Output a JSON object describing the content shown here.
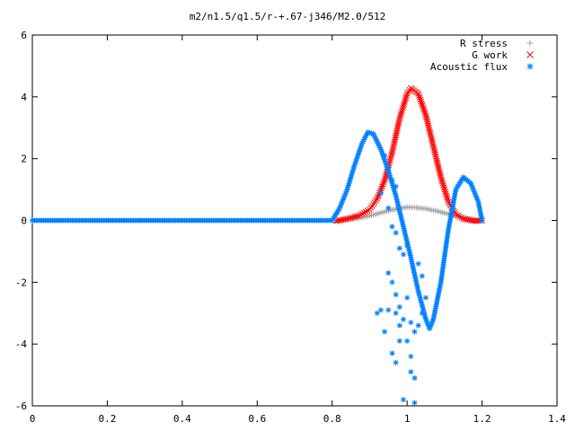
{
  "chart_data": {
    "type": "scatter",
    "title": "m2/n1.5/q1.5/r-+.67-j346/M2.0/512",
    "xlabel": "",
    "ylabel": "",
    "xlim": [
      0,
      1.4
    ],
    "ylim": [
      -6,
      6
    ],
    "x_ticks": [
      "0",
      "0.2",
      "0.4",
      "0.6",
      "0.8",
      "1",
      "1.2",
      "1.4"
    ],
    "y_ticks": [
      "6",
      "4",
      "2",
      "0",
      "-2",
      "-4",
      "-6"
    ],
    "grid": false,
    "legend_position": "top-right",
    "series": [
      {
        "name": "R stress",
        "marker": "plus",
        "color": "#a0a0a0",
        "points": [
          [
            0.81,
            0.0
          ],
          [
            0.84,
            0.02
          ],
          [
            0.87,
            0.07
          ],
          [
            0.9,
            0.15
          ],
          [
            0.93,
            0.25
          ],
          [
            0.96,
            0.34
          ],
          [
            0.99,
            0.41
          ],
          [
            1.0,
            0.43
          ],
          [
            1.02,
            0.42
          ],
          [
            1.05,
            0.38
          ],
          [
            1.08,
            0.3
          ],
          [
            1.11,
            0.21
          ],
          [
            1.14,
            0.12
          ],
          [
            1.17,
            0.05
          ],
          [
            1.2,
            0.0
          ]
        ]
      },
      {
        "name": "G work",
        "marker": "cross",
        "color": "#ff0000",
        "points": [
          [
            0.81,
            -0.02
          ],
          [
            0.84,
            0.05
          ],
          [
            0.87,
            0.15
          ],
          [
            0.9,
            0.35
          ],
          [
            0.92,
            0.7
          ],
          [
            0.94,
            1.3
          ],
          [
            0.96,
            2.2
          ],
          [
            0.98,
            3.3
          ],
          [
            1.0,
            4.1
          ],
          [
            1.01,
            4.28
          ],
          [
            1.03,
            4.1
          ],
          [
            1.05,
            3.4
          ],
          [
            1.07,
            2.4
          ],
          [
            1.09,
            1.4
          ],
          [
            1.11,
            0.6
          ],
          [
            1.13,
            0.2
          ],
          [
            1.15,
            0.05
          ],
          [
            1.18,
            -0.02
          ],
          [
            1.2,
            0.0
          ]
        ]
      },
      {
        "name": "Acoustic flux",
        "marker": "star",
        "color": "#0080ff",
        "curve_points": [
          [
            0.0,
            0.0
          ],
          [
            0.4,
            0.0
          ],
          [
            0.8,
            0.0
          ],
          [
            0.82,
            0.4
          ],
          [
            0.84,
            1.0
          ],
          [
            0.86,
            1.8
          ],
          [
            0.88,
            2.5
          ],
          [
            0.895,
            2.85
          ],
          [
            0.91,
            2.8
          ],
          [
            0.93,
            2.3
          ],
          [
            0.95,
            1.6
          ],
          [
            0.97,
            0.8
          ],
          [
            0.99,
            -0.2
          ],
          [
            1.01,
            -1.2
          ],
          [
            1.03,
            -2.3
          ],
          [
            1.05,
            -3.2
          ],
          [
            1.06,
            -3.5
          ],
          [
            1.07,
            -3.2
          ],
          [
            1.09,
            -2.0
          ],
          [
            1.11,
            -0.3
          ],
          [
            1.13,
            1.0
          ],
          [
            1.15,
            1.4
          ],
          [
            1.17,
            1.2
          ],
          [
            1.19,
            0.6
          ],
          [
            1.2,
            0.0
          ]
        ],
        "scatter_points": [
          [
            0.94,
            2.1
          ],
          [
            0.95,
            1.7
          ],
          [
            0.96,
            1.3
          ],
          [
            0.97,
            1.1
          ],
          [
            0.93,
            0.9
          ],
          [
            0.95,
            0.4
          ],
          [
            0.96,
            -0.2
          ],
          [
            0.97,
            -0.4
          ],
          [
            0.98,
            -0.9
          ],
          [
            0.99,
            -1.1
          ],
          [
            0.95,
            -1.7
          ],
          [
            0.96,
            -2.0
          ],
          [
            1.0,
            -0.8
          ],
          [
            0.97,
            -2.4
          ],
          [
            0.98,
            -2.8
          ],
          [
            1.0,
            -2.5
          ],
          [
            1.01,
            -3.3
          ],
          [
            0.99,
            -3.2
          ],
          [
            0.98,
            -3.9
          ],
          [
            0.96,
            -4.3
          ],
          [
            1.01,
            -4.4
          ],
          [
            0.97,
            -4.6
          ],
          [
            1.01,
            -4.9
          ],
          [
            1.02,
            -5.1
          ],
          [
            0.99,
            -5.8
          ],
          [
            1.02,
            -5.9
          ],
          [
            1.03,
            -3.4
          ],
          [
            1.04,
            -3.0
          ],
          [
            1.05,
            -2.5
          ],
          [
            1.04,
            -1.8
          ],
          [
            1.03,
            -1.4
          ],
          [
            0.93,
            -2.9
          ],
          [
            0.92,
            -3.0
          ],
          [
            0.94,
            -3.6
          ],
          [
            0.95,
            -2.9
          ],
          [
            1.0,
            -3.9
          ],
          [
            1.02,
            -3.6
          ],
          [
            0.97,
            -3.0
          ],
          [
            0.98,
            -3.4
          ]
        ]
      }
    ]
  }
}
